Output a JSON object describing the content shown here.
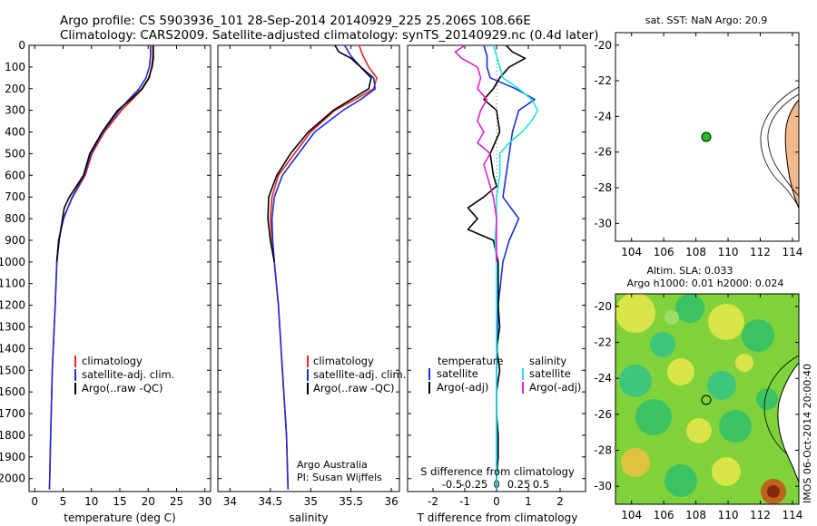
{
  "header": {
    "line1": "Argo profile: CS 5903936_101 28-Sep-2014 20140929_225 25.206S 108.66E",
    "line2": "Climatology: CARS2009. Satellite-adjusted climatology: synTS_20140929.nc (0.4d later)"
  },
  "colors": {
    "climatology": "#e4261b",
    "satellite": "#1a2fd6",
    "argo": "#000000",
    "cyan": "#1fe3e3",
    "magenta": "#e01fd1",
    "land": "#f3b98a",
    "marker": "#1ec21e"
  },
  "depth_ticks": [
    "0",
    "100",
    "200",
    "300",
    "400",
    "500",
    "600",
    "700",
    "800",
    "900",
    "1000",
    "1100",
    "1200",
    "1300",
    "1400",
    "1500",
    "1600",
    "1700",
    "1800",
    "1900",
    "2000"
  ],
  "panel_temp": {
    "xlabel": "temperature (deg C)",
    "xticks": [
      "0",
      "5",
      "10",
      "15",
      "20",
      "25",
      "30"
    ],
    "legend": [
      "climatology",
      "satellite-adj. clim.",
      "Argo(..raw -QC)"
    ]
  },
  "panel_sal": {
    "xlabel": "salinity",
    "xticks": [
      "34",
      "34.5",
      "35",
      "35.5",
      "36"
    ],
    "legend": [
      "climatology",
      "satellite-adj. clim.",
      "Argo(..raw -QC)"
    ],
    "note1": "Argo Australia",
    "note2": "PI: Susan Wijffels"
  },
  "panel_diff": {
    "top_label": "S difference from climatology",
    "top_ticks": [
      "-0.5",
      "-0.25",
      "0",
      "0.25",
      "0.5"
    ],
    "xlabel": "T difference from climatology",
    "xticks": [
      "-2",
      "-1",
      "0",
      "1",
      "2"
    ],
    "legend_t_title": "temperature",
    "legend_s_title": "salinity",
    "legend_t": [
      "satellite",
      "Argo(-adj)"
    ],
    "legend_s": [
      "satellite",
      "Argo(-adj)"
    ]
  },
  "map_sst": {
    "title": "sat. SST: NaN Argo: 20.9",
    "yticks": [
      "-20",
      "-22",
      "-24",
      "-26",
      "-28",
      "-30"
    ],
    "xticks": [
      "104",
      "106",
      "108",
      "110",
      "112",
      "114"
    ]
  },
  "map_sla": {
    "title1": "Altim. SLA: 0.033",
    "title2": "Argo h1000: 0.01 h2000: 0.024",
    "yticks": [
      "-20",
      "-22",
      "-24",
      "-26",
      "-28",
      "-30"
    ],
    "xticks": [
      "104",
      "106",
      "108",
      "110",
      "112",
      "114"
    ],
    "credit": "IMOS 06-Oct-2014 20:00:40"
  },
  "chart_data": [
    {
      "type": "line",
      "title": "",
      "xlabel": "temperature (deg C)",
      "ylabel": "",
      "xlim": [
        -1,
        31
      ],
      "ylim": [
        2060,
        0
      ],
      "series": [
        {
          "name": "climatology",
          "color": "#e4261b",
          "depth": [
            0,
            50,
            100,
            150,
            200,
            250,
            300,
            400,
            500,
            600,
            700,
            800,
            900,
            1000,
            1200,
            1500,
            1800,
            2050
          ],
          "values": [
            20.8,
            20.8,
            20.6,
            20.2,
            19.0,
            17.2,
            15.3,
            12.3,
            10.1,
            8.9,
            6.7,
            5.0,
            4.2,
            3.9,
            3.6,
            3.1,
            2.8,
            2.6
          ]
        },
        {
          "name": "satellite-adj. clim.",
          "color": "#1a2fd6",
          "depth": [
            0,
            50,
            100,
            150,
            200,
            250,
            300,
            400,
            500,
            600,
            700,
            800,
            900,
            1000,
            1200,
            1500,
            1800,
            2050
          ],
          "values": [
            20.4,
            20.4,
            20.2,
            19.6,
            18.4,
            16.6,
            14.9,
            12.0,
            9.9,
            8.7,
            6.6,
            5.1,
            4.2,
            3.9,
            3.6,
            3.1,
            2.8,
            2.6
          ]
        },
        {
          "name": "Argo(..raw -QC)",
          "color": "#000000",
          "depth": [
            0,
            30,
            60,
            100,
            150,
            200,
            250,
            300,
            400,
            500,
            600,
            700,
            750,
            800,
            900,
            1000
          ],
          "values": [
            20.9,
            20.9,
            20.9,
            20.7,
            20.1,
            18.9,
            16.9,
            14.6,
            11.9,
            9.7,
            8.6,
            6.1,
            5.2,
            4.9,
            4.3,
            3.9
          ]
        }
      ]
    },
    {
      "type": "line",
      "title": "",
      "xlabel": "salinity",
      "ylim": [
        2060,
        0
      ],
      "xlim": [
        33.85,
        36.1
      ],
      "series": [
        {
          "name": "climatology",
          "color": "#e4261b",
          "depth": [
            0,
            50,
            100,
            150,
            200,
            250,
            300,
            400,
            500,
            600,
            700,
            800,
            900,
            1000,
            1200,
            1500,
            1800,
            2050
          ],
          "values": [
            35.6,
            35.65,
            35.72,
            35.82,
            35.78,
            35.55,
            35.3,
            35.0,
            34.8,
            34.6,
            34.52,
            34.5,
            34.52,
            34.55,
            34.6,
            34.65,
            34.7,
            34.72
          ]
        },
        {
          "name": "satellite-adj. clim.",
          "color": "#1a2fd6",
          "depth": [
            0,
            50,
            100,
            150,
            200,
            250,
            300,
            400,
            500,
            600,
            700,
            800,
            900,
            1000,
            1200,
            1500,
            1800,
            2050
          ],
          "values": [
            35.42,
            35.5,
            35.62,
            35.78,
            35.8,
            35.62,
            35.4,
            35.05,
            34.85,
            34.65,
            34.55,
            34.52,
            34.53,
            34.55,
            34.6,
            34.65,
            34.7,
            34.72
          ]
        },
        {
          "name": "Argo(..raw -QC)",
          "color": "#000000",
          "depth": [
            0,
            30,
            60,
            100,
            150,
            200,
            250,
            300,
            400,
            500,
            600,
            700,
            800,
            900,
            1000
          ],
          "values": [
            35.3,
            35.35,
            35.5,
            35.62,
            35.75,
            35.72,
            35.5,
            35.28,
            34.97,
            34.75,
            34.58,
            34.48,
            34.47,
            34.5,
            34.55
          ]
        }
      ]
    },
    {
      "type": "line",
      "xlabel": "T difference from climatology",
      "ylim": [
        2060,
        0
      ],
      "xlim": [
        -2.8,
        2.8
      ],
      "series": [
        {
          "name": "satellite",
          "color": "#1a2fd6",
          "depth": [
            0,
            50,
            100,
            150,
            200,
            250,
            300,
            400,
            500,
            600,
            700,
            800,
            900,
            1000,
            1200,
            1500,
            1800,
            2050
          ],
          "values": [
            -0.4,
            -0.3,
            -0.3,
            -0.2,
            0.6,
            1.2,
            0.7,
            0.5,
            0.4,
            0.3,
            0.2,
            0.7,
            0.4,
            0.2,
            0.05,
            0.0,
            0.0,
            0.0
          ]
        },
        {
          "name": "Argo(-adj)",
          "color": "#000000",
          "depth": [
            0,
            30,
            60,
            100,
            150,
            200,
            250,
            300,
            400,
            500,
            600,
            650,
            700,
            750,
            800,
            850,
            900,
            1000,
            1100,
            1200,
            1300,
            1400,
            1500,
            1600,
            1700,
            1800,
            1900,
            2000,
            2050
          ],
          "values": [
            0.3,
            0.5,
            0.9,
            0.4,
            0.1,
            -0.1,
            -0.4,
            0.0,
            0.1,
            -0.2,
            -0.1,
            0.0,
            -0.4,
            -0.9,
            -0.6,
            -0.9,
            -0.1,
            0.05,
            0.05,
            0.05,
            0.1,
            0.0,
            0.1,
            0.0,
            0.0,
            0.05,
            0.05,
            0.0,
            0.0
          ]
        },
        {
          "name": "satellite",
          "color": "#1fe3e3",
          "depth": [
            0,
            50,
            100,
            150,
            200,
            250,
            300,
            350,
            400,
            450,
            500,
            600,
            700,
            800,
            900,
            1000,
            1200,
            1500,
            1800,
            2050
          ],
          "values": [
            -0.1,
            0.0,
            0.1,
            0.2,
            0.7,
            1.1,
            1.3,
            1.1,
            0.8,
            0.4,
            0.1,
            0.1,
            0.0,
            0.0,
            -0.05,
            0.0,
            0.0,
            0.0,
            0.0,
            0.0
          ]
        },
        {
          "name": "Argo(-adj)",
          "color": "#e01fd1",
          "depth": [
            0,
            30,
            60,
            100,
            150,
            200,
            250,
            300,
            350,
            400,
            450,
            500,
            550,
            600,
            650,
            700,
            800,
            900,
            1000
          ],
          "values": [
            -1.0,
            -1.3,
            -1.1,
            -0.6,
            -0.5,
            -0.6,
            -0.3,
            -0.5,
            -0.6,
            -0.4,
            -0.6,
            -0.2,
            -0.4,
            -0.3,
            -0.2,
            -0.1,
            0.0,
            0.0,
            0.0
          ]
        }
      ]
    }
  ]
}
